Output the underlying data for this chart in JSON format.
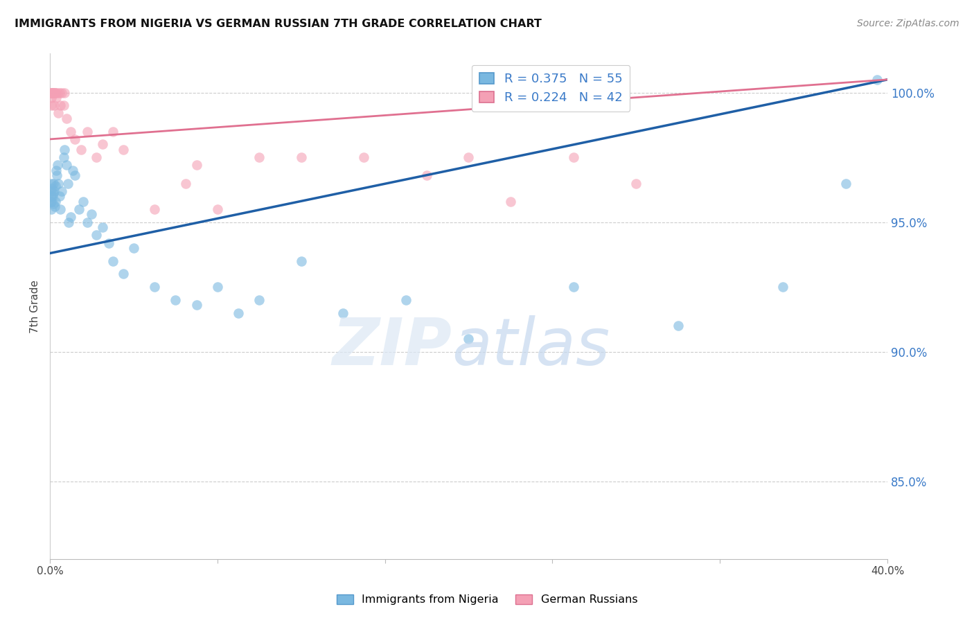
{
  "title": "IMMIGRANTS FROM NIGERIA VS GERMAN RUSSIAN 7TH GRADE CORRELATION CHART",
  "source": "Source: ZipAtlas.com",
  "ylabel": "7th Grade",
  "y_ticks": [
    85.0,
    90.0,
    95.0,
    100.0
  ],
  "y_tick_labels": [
    "85.0%",
    "90.0%",
    "95.0%",
    "100.0%"
  ],
  "xlim": [
    0.0,
    40.0
  ],
  "ylim": [
    82.0,
    101.5
  ],
  "nigeria_color": "#7ab8e0",
  "german_color": "#f4a0b5",
  "nigeria_label": "Immigrants from Nigeria",
  "german_label": "German Russians",
  "blue_line_color": "#1f5fa6",
  "pink_line_color": "#e07090",
  "legend_blue_label": "R = 0.375   N = 55",
  "legend_pink_label": "R = 0.224   N = 42",
  "blue_line_x0": 0.0,
  "blue_line_y0": 93.8,
  "blue_line_x1": 40.0,
  "blue_line_y1": 100.5,
  "pink_line_x0": 0.0,
  "pink_line_y0": 98.2,
  "pink_line_x1": 40.0,
  "pink_line_y1": 100.5,
  "nigeria_x": [
    0.05,
    0.05,
    0.05,
    0.05,
    0.07,
    0.08,
    0.1,
    0.12,
    0.15,
    0.15,
    0.18,
    0.2,
    0.22,
    0.25,
    0.28,
    0.3,
    0.32,
    0.35,
    0.4,
    0.45,
    0.5,
    0.55,
    0.65,
    0.7,
    0.8,
    0.85,
    0.9,
    1.0,
    1.1,
    1.2,
    1.4,
    1.6,
    1.8,
    2.0,
    2.2,
    2.5,
    2.8,
    3.0,
    3.5,
    4.0,
    5.0,
    6.0,
    7.0,
    8.0,
    9.0,
    10.0,
    12.0,
    14.0,
    17.0,
    20.0,
    25.0,
    30.0,
    35.0,
    38.0,
    39.5
  ],
  "nigeria_y": [
    96.2,
    96.0,
    95.8,
    96.5,
    95.5,
    95.8,
    96.3,
    96.0,
    95.7,
    96.1,
    96.5,
    96.2,
    95.6,
    96.4,
    95.8,
    97.0,
    96.8,
    97.2,
    96.5,
    96.0,
    95.5,
    96.2,
    97.5,
    97.8,
    97.2,
    96.5,
    95.0,
    95.2,
    97.0,
    96.8,
    95.5,
    95.8,
    95.0,
    95.3,
    94.5,
    94.8,
    94.2,
    93.5,
    93.0,
    94.0,
    92.5,
    92.0,
    91.8,
    92.5,
    91.5,
    92.0,
    93.5,
    91.5,
    92.0,
    90.5,
    92.5,
    91.0,
    92.5,
    96.5,
    100.5
  ],
  "german_x": [
    0.05,
    0.05,
    0.05,
    0.07,
    0.08,
    0.1,
    0.12,
    0.15,
    0.18,
    0.2,
    0.22,
    0.25,
    0.28,
    0.3,
    0.35,
    0.4,
    0.45,
    0.5,
    0.55,
    0.65,
    0.7,
    0.8,
    1.0,
    1.2,
    1.5,
    1.8,
    2.2,
    2.5,
    3.0,
    3.5,
    5.0,
    6.5,
    7.0,
    8.0,
    10.0,
    12.0,
    15.0,
    18.0,
    20.0,
    22.0,
    25.0,
    28.0
  ],
  "german_y": [
    100.0,
    99.8,
    99.5,
    100.0,
    100.0,
    100.0,
    100.0,
    100.0,
    100.0,
    99.5,
    100.0,
    100.0,
    100.0,
    99.8,
    100.0,
    99.2,
    100.0,
    99.5,
    100.0,
    99.5,
    100.0,
    99.0,
    98.5,
    98.2,
    97.8,
    98.5,
    97.5,
    98.0,
    98.5,
    97.8,
    95.5,
    96.5,
    97.2,
    95.5,
    97.5,
    97.5,
    97.5,
    96.8,
    97.5,
    95.8,
    97.5,
    96.5
  ]
}
